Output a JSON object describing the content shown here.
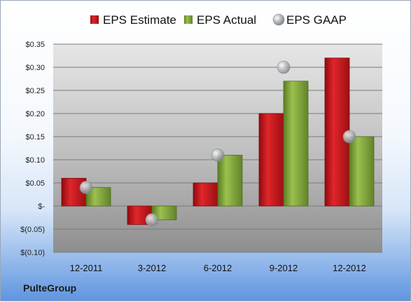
{
  "chart_data": {
    "type": "bar",
    "categories": [
      "12-2011",
      "3-2012",
      "6-2012",
      "9-2012",
      "12-2012"
    ],
    "series": [
      {
        "name": "EPS Estimate",
        "type": "bar",
        "color": "#c8151b",
        "values": [
          0.06,
          -0.04,
          0.05,
          0.2,
          0.32
        ]
      },
      {
        "name": "EPS Actual",
        "type": "bar",
        "color": "#7fa637",
        "values": [
          0.04,
          -0.03,
          0.11,
          0.27,
          0.15
        ]
      },
      {
        "name": "EPS GAAP",
        "type": "scatter",
        "color": "#a9aeb4",
        "values": [
          0.04,
          -0.03,
          0.11,
          0.3,
          0.15
        ]
      }
    ],
    "yticks": [
      0.35,
      0.3,
      0.25,
      0.2,
      0.15,
      0.1,
      0.05,
      0,
      -0.05,
      -0.1
    ],
    "ytick_labels": [
      "$0.35",
      "$0.30",
      "$0.25",
      "$0.20",
      "$0.15",
      "$0.10",
      "$0.05",
      "$-",
      "$(0.05)",
      "$(0.10)"
    ],
    "ylim": [
      -0.1,
      0.35
    ],
    "grid": true,
    "legend": "top"
  },
  "footer": {
    "company": "PulteGroup"
  }
}
